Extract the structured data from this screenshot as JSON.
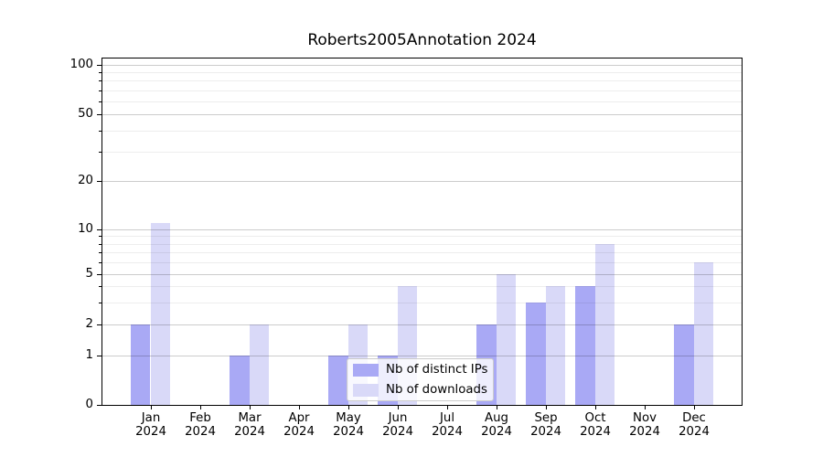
{
  "chart_data": {
    "type": "bar",
    "title": "Roberts2005Annotation 2024",
    "categories": [
      "Jan",
      "Feb",
      "Mar",
      "Apr",
      "May",
      "Jun",
      "Jul",
      "Aug",
      "Sep",
      "Oct",
      "Nov",
      "Dec"
    ],
    "x_tick_year": "2024",
    "series": [
      {
        "name": "Nb of distinct IPs",
        "color": "#a9a9f5",
        "values": [
          2,
          0,
          1,
          0,
          1,
          1,
          0,
          2,
          3,
          4,
          0,
          2
        ]
      },
      {
        "name": "Nb of downloads",
        "color": "#d9d9f8",
        "values": [
          11,
          0,
          2,
          0,
          2,
          4,
          0,
          5,
          4,
          8,
          0,
          6
        ]
      }
    ],
    "xlabel": "",
    "ylabel": "",
    "yscale": "symlog",
    "ylim": [
      0,
      111
    ],
    "y_major_ticks": [
      0,
      1,
      2,
      5,
      10,
      20,
      50,
      100
    ],
    "y_minor_ticks": [
      3,
      4,
      6,
      7,
      8,
      9,
      30,
      40,
      60,
      70,
      80,
      90
    ],
    "grid": "horizontal major+minor, drawn above bars",
    "legend_position": "lower center",
    "colors": {
      "grid_major": "rgba(0,0,0,0.20)",
      "grid_minor": "rgba(0,0,0,0.07)",
      "axis": "#000000",
      "background": "#ffffff"
    }
  }
}
